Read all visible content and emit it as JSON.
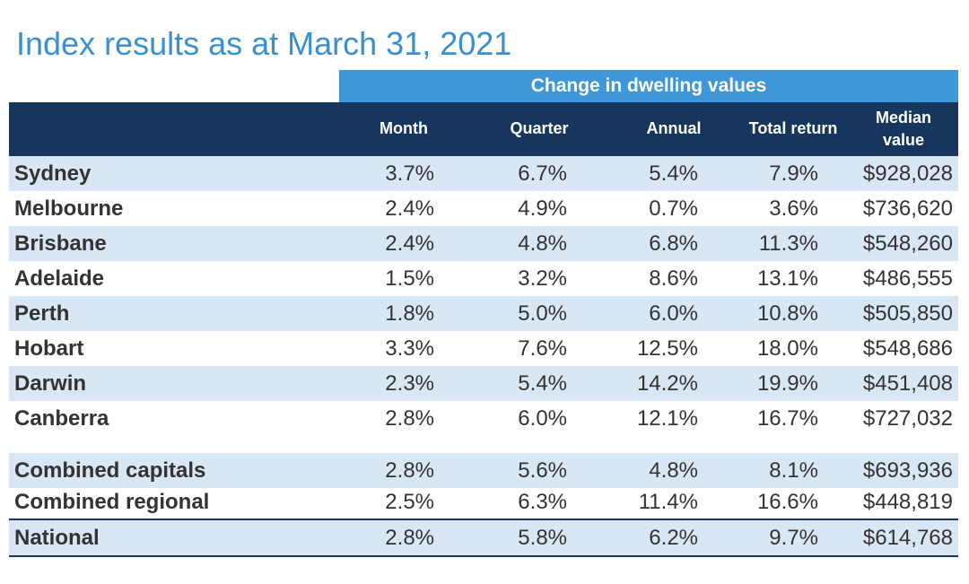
{
  "title": "Index results as at March 31, 2021",
  "super_header": "Change in dwelling values",
  "columns": {
    "month": "Month",
    "quarter": "Quarter",
    "annual": "Annual",
    "total_return": "Total return",
    "median_line1": "Median",
    "median_line2": "value"
  },
  "rows": [
    {
      "name": "Sydney",
      "month": "3.7%",
      "quarter": "6.7%",
      "annual": "5.4%",
      "total": "7.9%",
      "median": "$928,028"
    },
    {
      "name": "Melbourne",
      "month": "2.4%",
      "quarter": "4.9%",
      "annual": "0.7%",
      "total": "3.6%",
      "median": "$736,620"
    },
    {
      "name": "Brisbane",
      "month": "2.4%",
      "quarter": "4.8%",
      "annual": "6.8%",
      "total": "11.3%",
      "median": "$548,260"
    },
    {
      "name": "Adelaide",
      "month": "1.5%",
      "quarter": "3.2%",
      "annual": "8.6%",
      "total": "13.1%",
      "median": "$486,555"
    },
    {
      "name": "Perth",
      "month": "1.8%",
      "quarter": "5.0%",
      "annual": "6.0%",
      "total": "10.8%",
      "median": "$505,850"
    },
    {
      "name": "Hobart",
      "month": "3.3%",
      "quarter": "7.6%",
      "annual": "12.5%",
      "total": "18.0%",
      "median": "$548,686"
    },
    {
      "name": "Darwin",
      "month": "2.3%",
      "quarter": "5.4%",
      "annual": "14.2%",
      "total": "19.9%",
      "median": "$451,408"
    },
    {
      "name": "Canberra",
      "month": "2.8%",
      "quarter": "6.0%",
      "annual": "12.1%",
      "total": "16.7%",
      "median": "$727,032"
    },
    {
      "name": "Combined capitals",
      "month": "2.8%",
      "quarter": "5.6%",
      "annual": "4.8%",
      "total": "8.1%",
      "median": "$693,936"
    },
    {
      "name": "Combined regional",
      "month": "2.5%",
      "quarter": "6.3%",
      "annual": "11.4%",
      "total": "16.6%",
      "median": "$448,819"
    },
    {
      "name": "National",
      "month": "2.8%",
      "quarter": "5.8%",
      "annual": "6.2%",
      "total": "9.7%",
      "median": "$614,768"
    }
  ]
}
